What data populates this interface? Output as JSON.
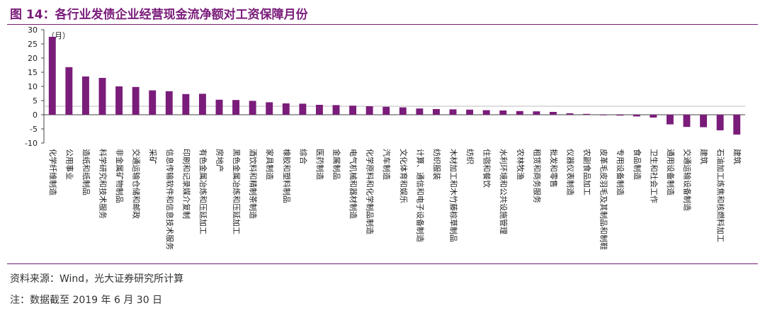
{
  "title": "图 14：各行业发债企业经营现金流净额对工资保障月份",
  "source": "资料来源：Wind，光大证券研究所计算",
  "remark": "注：数据截至 2019 年 6 月 30 日",
  "colors": {
    "bar": "#7a1c7a",
    "accent": "#7a1c7a"
  },
  "chart_data": {
    "type": "bar",
    "unit_label": "（月）",
    "ylim": [
      -10,
      30
    ],
    "yticks": [
      -10,
      -5,
      0,
      5,
      10,
      15,
      20,
      25,
      30
    ],
    "reference_line": 3,
    "grid": false,
    "categories": [
      "化学纤维制造",
      "公用事业",
      "造纸和纸制品",
      "科学研究和技术服务",
      "非金属矿物制品",
      "交通运输仓储和邮政",
      "采矿",
      "信息传输软件和信息技术服务",
      "印刷和记录媒介复制",
      "有色金属冶炼和压延加工",
      "房地产",
      "黑色金属冶炼和压延加工",
      "酒饮料和精制茶制造",
      "家具制造",
      "橡胶和塑料制品",
      "综合",
      "医药制造",
      "金属制品",
      "电气机械和器材制造",
      "化学原料和化学制品制造",
      "汽车制造",
      "文化体育和娱乐",
      "计算、通信和电子设备制造",
      "纺织服装",
      "木材加工和木竹藤棕草制品",
      "纺织",
      "住宿和餐饮",
      "水利环境和公共设施管理",
      "农林牧渔",
      "租赁和商务服务",
      "批发和零售",
      "仪器仪表制造",
      "农副食品加工",
      "皮革毛皮羽毛及其制品和制鞋",
      "专用设备制造",
      "食品制造",
      "卫生和社会工作",
      "通用设备制造",
      "交通运输设备制造",
      "建筑",
      "石油加工炼焦和核燃料加工",
      "建筑"
    ],
    "values": [
      27.5,
      16.8,
      13.5,
      13.0,
      10.0,
      9.8,
      8.6,
      8.3,
      7.3,
      7.4,
      5.3,
      5.2,
      4.9,
      4.4,
      4.0,
      3.9,
      3.5,
      3.4,
      3.2,
      3.0,
      2.8,
      2.6,
      2.2,
      2.0,
      1.9,
      1.8,
      1.6,
      1.5,
      1.3,
      1.2,
      1.0,
      0.5,
      0.3,
      -0.2,
      -0.3,
      -0.6,
      -1.0,
      -3.4,
      -4.3,
      -4.4,
      -5.5,
      -7.0
    ]
  }
}
